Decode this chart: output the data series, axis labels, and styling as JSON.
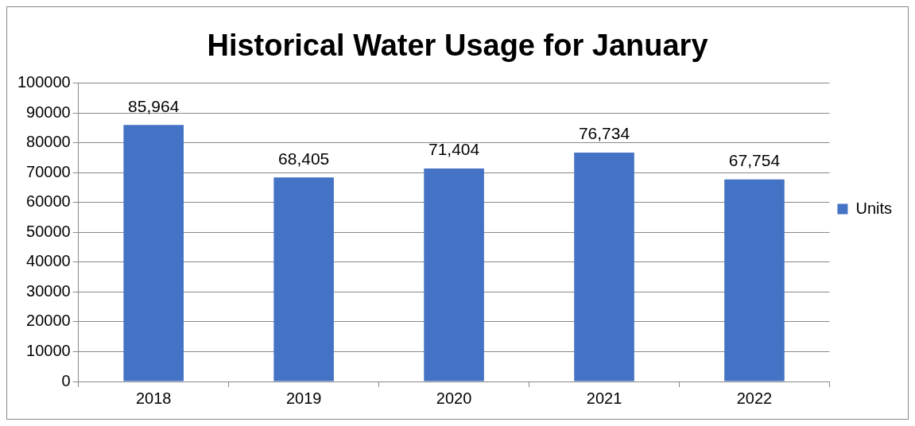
{
  "chart_data": {
    "type": "bar",
    "title": "Historical Water Usage for January",
    "categories": [
      "2018",
      "2019",
      "2020",
      "2021",
      "2022"
    ],
    "series": [
      {
        "name": "Units",
        "color": "#4472c4",
        "values": [
          85964,
          68405,
          71404,
          76734,
          67754
        ],
        "value_labels": [
          "85,964",
          "68,405",
          "71,404",
          "76,734",
          "67,754"
        ]
      }
    ],
    "ylim": [
      0,
      100000
    ],
    "yticks": [
      0,
      10000,
      20000,
      30000,
      40000,
      50000,
      60000,
      70000,
      80000,
      90000,
      100000
    ],
    "grid": "y",
    "legend": "right"
  }
}
